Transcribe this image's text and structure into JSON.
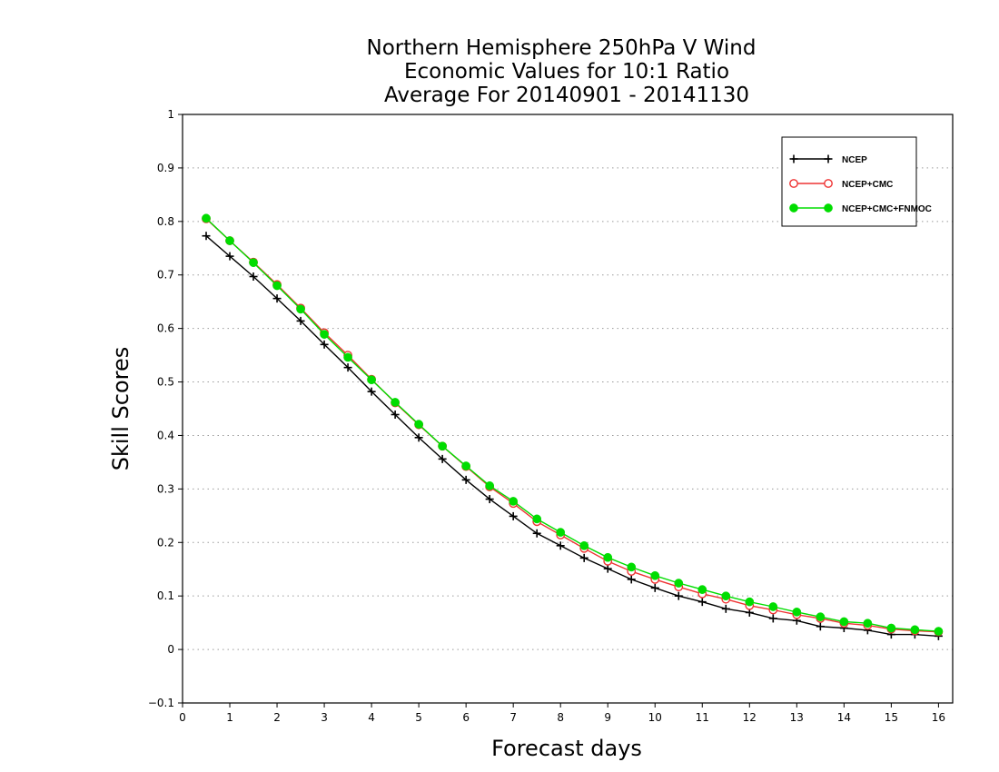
{
  "chart_data": {
    "type": "line",
    "title": [
      "Northern Hemisphere 250hPa V Wind",
      "Economic Values for 10:1 Ratio",
      "Average For 20140901 - 20141130"
    ],
    "xlabel": "Forecast days",
    "ylabel": "Skill Scores",
    "xlim": [
      0,
      16.3
    ],
    "ylim": [
      -0.1,
      1
    ],
    "x_ticks": [
      0,
      1,
      2,
      3,
      4,
      5,
      6,
      7,
      8,
      9,
      10,
      11,
      12,
      13,
      14,
      15,
      16
    ],
    "y_ticks": [
      -0.1,
      0,
      0.1,
      0.2,
      0.3,
      0.4,
      0.5,
      0.6,
      0.7,
      0.8,
      0.9,
      1
    ],
    "y_tick_labels": [
      "−0.1",
      "0",
      "0.1",
      "0.2",
      "0.3",
      "0.4",
      "0.5",
      "0.6",
      "0.7",
      "0.8",
      "0.9",
      "1"
    ],
    "grid": "horizontal dotted",
    "legend_position": "top-right",
    "x": [
      0.5,
      1,
      1.5,
      2,
      2.5,
      3,
      3.5,
      4,
      4.5,
      5,
      5.5,
      6,
      6.5,
      7,
      7.5,
      8,
      8.5,
      9,
      9.5,
      10,
      10.5,
      11,
      11.5,
      12,
      12.5,
      13,
      13.5,
      14,
      14.5,
      15,
      15.5,
      16
    ],
    "series": [
      {
        "name": "NCEP",
        "color": "#000000",
        "marker": "plus",
        "values": [
          0.773,
          0.735,
          0.697,
          0.656,
          0.614,
          0.57,
          0.527,
          0.482,
          0.439,
          0.396,
          0.356,
          0.317,
          0.281,
          0.249,
          0.217,
          0.194,
          0.171,
          0.151,
          0.131,
          0.115,
          0.1,
          0.089,
          0.076,
          0.069,
          0.058,
          0.054,
          0.043,
          0.04,
          0.036,
          0.028,
          0.028,
          0.025
        ]
      },
      {
        "name": "NCEP+CMC",
        "color": "#ee3333",
        "marker": "open-circle",
        "values": [
          0.805,
          0.764,
          0.724,
          0.682,
          0.638,
          0.592,
          0.55,
          0.505,
          0.461,
          0.42,
          0.38,
          0.342,
          0.304,
          0.273,
          0.239,
          0.214,
          0.189,
          0.165,
          0.146,
          0.131,
          0.117,
          0.104,
          0.094,
          0.082,
          0.074,
          0.065,
          0.058,
          0.049,
          0.045,
          0.038,
          0.035,
          0.033
        ]
      },
      {
        "name": "NCEP+CMC+FNMOC",
        "color": "#00dd00",
        "marker": "filled-circle",
        "values": [
          0.806,
          0.764,
          0.723,
          0.68,
          0.636,
          0.589,
          0.546,
          0.504,
          0.462,
          0.421,
          0.38,
          0.343,
          0.306,
          0.277,
          0.244,
          0.219,
          0.194,
          0.172,
          0.154,
          0.138,
          0.124,
          0.112,
          0.1,
          0.089,
          0.08,
          0.07,
          0.061,
          0.052,
          0.049,
          0.04,
          0.037,
          0.034
        ]
      }
    ]
  }
}
